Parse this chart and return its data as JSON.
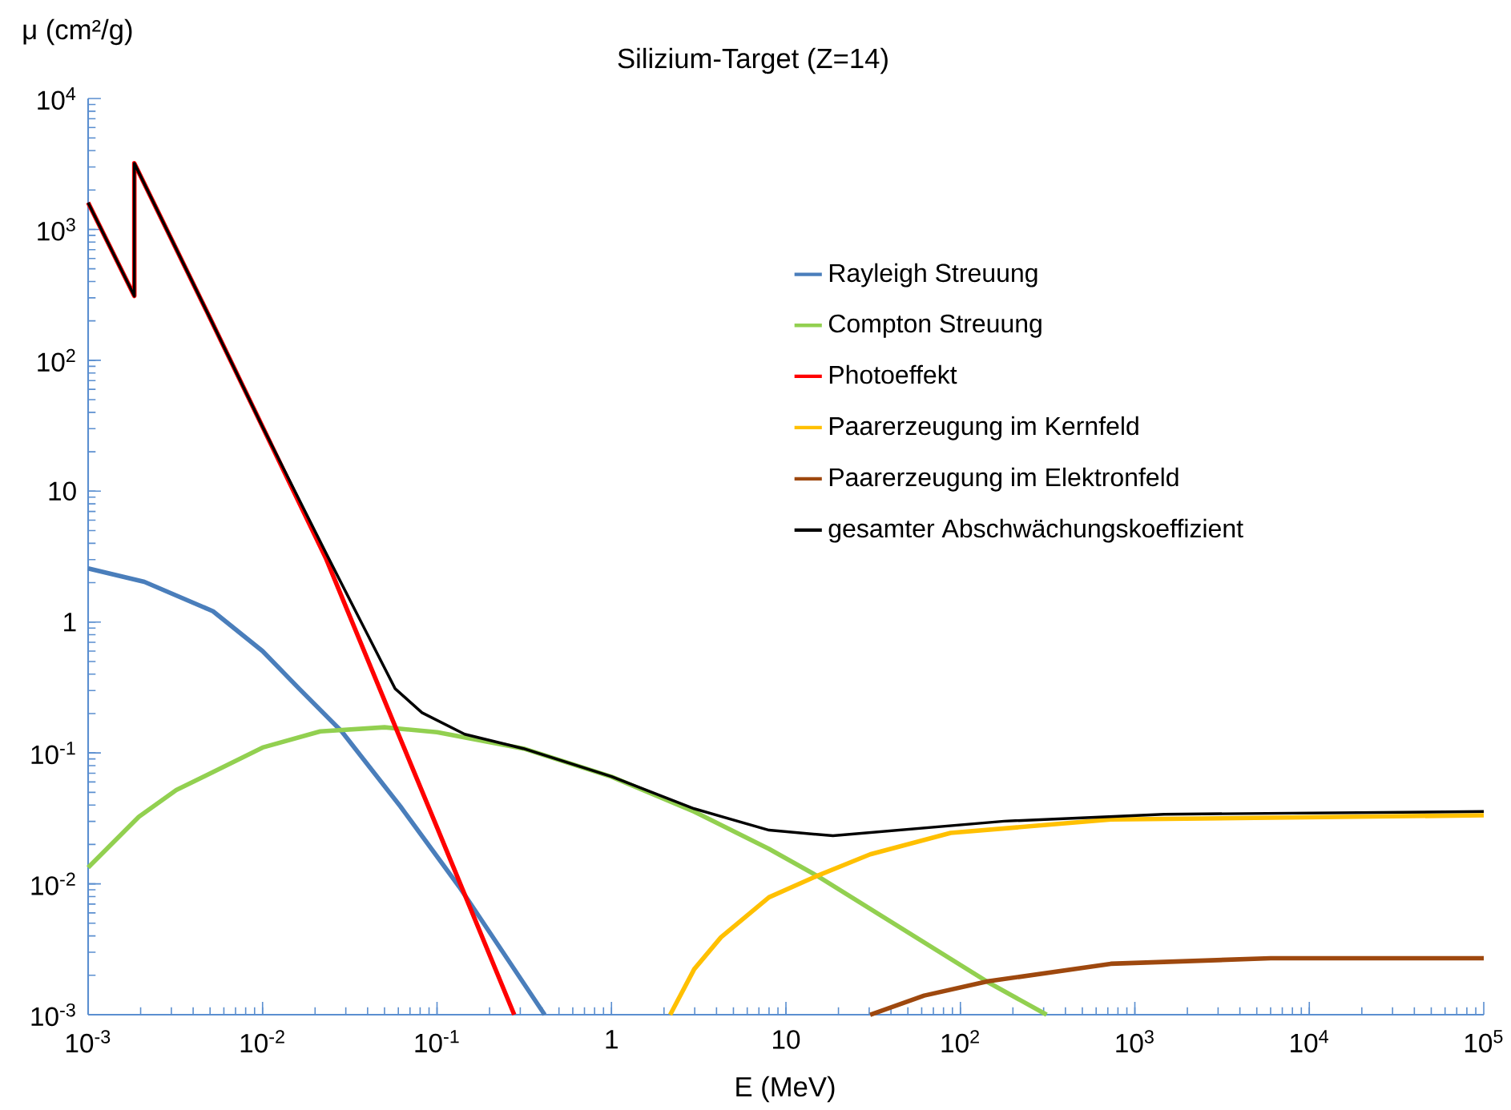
{
  "chart_data": {
    "type": "line",
    "title": "Silizium-Target (Z=14)",
    "xlabel": "E (MeV)",
    "ylabel": "μ (cm²/g)",
    "log": "xy",
    "legend": "right",
    "marker": "none",
    "line_style": "solid",
    "xlim": [
      0.001,
      100000
    ],
    "ylim": [
      0.001,
      10000
    ],
    "xticks": [
      {
        "value": 0.001,
        "label": "10$^{-3}$"
      },
      {
        "value": 0.01,
        "label": "10$^{-2}$"
      },
      {
        "value": 0.1,
        "label": "10$^{-1}$"
      },
      1,
      10,
      {
        "value": 100,
        "label": "10$^{2}$"
      },
      {
        "value": 1000,
        "label": "10$^{3}$"
      },
      {
        "value": 10000,
        "label": "10$^{4}$"
      },
      {
        "value": 100000,
        "label": "10$^{5}$"
      }
    ],
    "yticks": [
      {
        "value": 0.001,
        "label": "10$^{-3}$"
      },
      {
        "value": 0.01,
        "label": "10$^{-2}$"
      },
      {
        "value": 0.1,
        "label": "10$^{-1}$"
      },
      1,
      10,
      {
        "value": 100,
        "label": "10$^{2}$"
      },
      {
        "value": 1000,
        "label": "10$^{3}$"
      },
      {
        "value": 10000,
        "label": "10$^{4}$"
      }
    ],
    "series": [
      {
        "name": "Rayleigh Streuung",
        "color": "#4a7ebb",
        "x": [
          0.001,
          0.0021,
          0.0052,
          0.01,
          0.0162,
          0.0284,
          0.0617,
          0.134,
          0.414
        ],
        "values": [
          2.57,
          2.03,
          1.21,
          0.6,
          0.31,
          0.146,
          0.039,
          0.0095,
          0.001
        ]
      },
      {
        "name": "Compton Streuung",
        "color": "#92d050",
        "x": [
          0.001,
          0.00195,
          0.0032,
          0.01,
          0.0214,
          0.05,
          0.1,
          0.313,
          1,
          2.98,
          8,
          15.1,
          144,
          312
        ],
        "values": [
          0.0133,
          0.0325,
          0.052,
          0.11,
          0.146,
          0.157,
          0.144,
          0.108,
          0.0658,
          0.0356,
          0.0185,
          0.0115,
          0.00177,
          0.001
        ]
      },
      {
        "name": "Photoeffekt",
        "color": "#ff0000",
        "x": [
          0.001,
          0.00184,
          0.00184,
          0.005,
          0.01,
          0.023,
          0.0575,
          0.1,
          0.277
        ],
        "values": [
          1600,
          310,
          3200,
          210,
          31,
          3.1,
          0.16,
          0.027,
          0.001
        ]
      },
      {
        "name": "Paarerzeugung im Kernfeld",
        "color": "#ffc000",
        "x": [
          2.17,
          2.98,
          4.24,
          8,
          15.1,
          30.4,
          88,
          728,
          100000
        ],
        "values": [
          0.001,
          0.00223,
          0.0039,
          0.0079,
          0.0115,
          0.0168,
          0.0245,
          0.031,
          0.0334
        ]
      },
      {
        "name": "Paarerzeugung im Elektronfeld",
        "color": "#9e480e",
        "x": [
          30.4,
          62,
          144,
          728,
          6000,
          100000
        ],
        "values": [
          0.001,
          0.0014,
          0.0018,
          0.00245,
          0.0027,
          0.0027
        ]
      },
      {
        "name": "gesamter Abschwächungskoeffizient",
        "color": "#000000",
        "x": [
          0.001,
          0.00184,
          0.00184,
          0.005,
          0.01,
          0.023,
          0.04,
          0.0575,
          0.082,
          0.144,
          0.313,
          1,
          2.98,
          8,
          18.6,
          178,
          1470,
          100000
        ],
        "values": [
          1600,
          310,
          3200,
          210,
          31,
          3.4,
          0.8,
          0.31,
          0.203,
          0.139,
          0.108,
          0.066,
          0.0375,
          0.0257,
          0.0233,
          0.0301,
          0.034,
          0.0357
        ]
      }
    ]
  }
}
